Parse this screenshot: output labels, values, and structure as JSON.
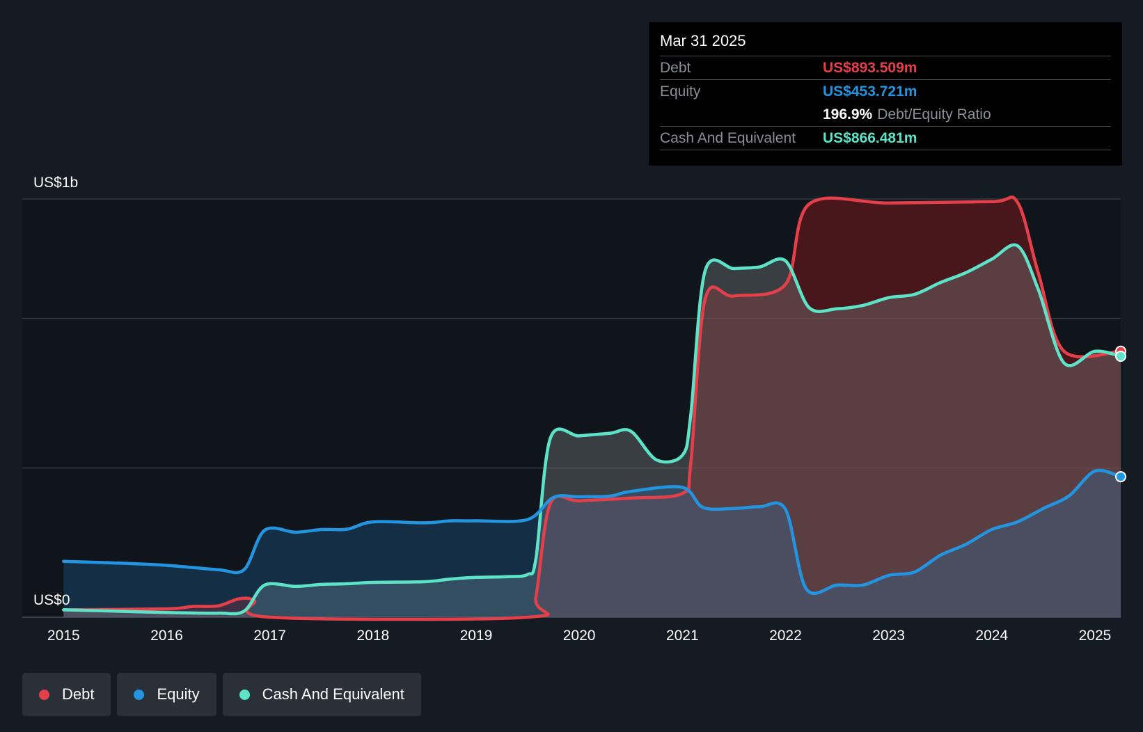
{
  "tooltip": {
    "date": "Mar 31 2025",
    "debt_label": "Debt",
    "debt_value": "US$893.509m",
    "equity_label": "Equity",
    "equity_value": "US$453.721m",
    "ratio_value": "196.9%",
    "ratio_label": "Debt/Equity Ratio",
    "cash_label": "Cash And Equivalent",
    "cash_value": "US$866.481m"
  },
  "legend": [
    {
      "label": "Debt",
      "color": "#e5404a"
    },
    {
      "label": "Equity",
      "color": "#2394df"
    },
    {
      "label": "Cash And Equivalent",
      "color": "#5de4c8"
    }
  ],
  "chart_data": {
    "type": "area",
    "ylim": [
      0,
      1250
    ],
    "xlim": [
      2014.6,
      2025.25
    ],
    "y_tick_labels": [
      {
        "value": 1250,
        "label": "US$1b"
      },
      {
        "value": 0,
        "label": "US$0"
      }
    ],
    "gridlines": [
      0,
      446,
      893,
      1250
    ],
    "x_ticks": [
      2015,
      2016,
      2017,
      2018,
      2019,
      2020,
      2021,
      2022,
      2023,
      2024,
      2025
    ],
    "series": [
      {
        "name": "Debt",
        "color": "#e5404a",
        "points": [
          [
            2015,
            22
          ],
          [
            2016,
            25
          ],
          [
            2016.25,
            32
          ],
          [
            2016.5,
            34
          ],
          [
            2016.7,
            55
          ],
          [
            2016.85,
            50
          ],
          [
            2017,
            0
          ],
          [
            2019.5,
            0
          ],
          [
            2019.58,
            60
          ],
          [
            2019.72,
            340
          ],
          [
            2020,
            348
          ],
          [
            2020.5,
            356
          ],
          [
            2021,
            370
          ],
          [
            2021.08,
            455
          ],
          [
            2021.22,
            950
          ],
          [
            2021.5,
            960
          ],
          [
            2022,
            995
          ],
          [
            2022.23,
            1235
          ],
          [
            2023,
            1238
          ],
          [
            2024,
            1242
          ],
          [
            2024.25,
            1240
          ],
          [
            2024.45,
            1030
          ],
          [
            2024.7,
            795
          ],
          [
            2025.25,
            795
          ]
        ]
      },
      {
        "name": "Equity",
        "color": "#2394df",
        "points": [
          [
            2015,
            167
          ],
          [
            2015.5,
            162
          ],
          [
            2016,
            155
          ],
          [
            2016.5,
            142
          ],
          [
            2016.75,
            142
          ],
          [
            2016.95,
            260
          ],
          [
            2017.25,
            254
          ],
          [
            2017.5,
            262
          ],
          [
            2017.75,
            263
          ],
          [
            2018,
            285
          ],
          [
            2018.5,
            282
          ],
          [
            2018.75,
            288
          ],
          [
            2019,
            288
          ],
          [
            2019.5,
            292
          ],
          [
            2019.75,
            358
          ],
          [
            2020,
            360
          ],
          [
            2020.3,
            362
          ],
          [
            2020.5,
            376
          ],
          [
            2021,
            388
          ],
          [
            2021.2,
            328
          ],
          [
            2021.5,
            325
          ],
          [
            2021.75,
            330
          ],
          [
            2022,
            322
          ],
          [
            2022.2,
            85
          ],
          [
            2022.5,
            96
          ],
          [
            2022.75,
            96
          ],
          [
            2023,
            125
          ],
          [
            2023.25,
            135
          ],
          [
            2023.5,
            185
          ],
          [
            2023.75,
            218
          ],
          [
            2024,
            262
          ],
          [
            2024.25,
            285
          ],
          [
            2024.5,
            325
          ],
          [
            2024.75,
            363
          ],
          [
            2025,
            437
          ],
          [
            2025.25,
            420
          ]
        ]
      },
      {
        "name": "Cash And Equivalent",
        "color": "#5de4c8",
        "points": [
          [
            2015,
            22
          ],
          [
            2015.5,
            18
          ],
          [
            2016,
            14
          ],
          [
            2016.5,
            12
          ],
          [
            2016.75,
            18
          ],
          [
            2016.95,
            96
          ],
          [
            2017.25,
            92
          ],
          [
            2017.5,
            98
          ],
          [
            2017.75,
            100
          ],
          [
            2018,
            104
          ],
          [
            2018.5,
            106
          ],
          [
            2018.75,
            114
          ],
          [
            2019,
            119
          ],
          [
            2019.3,
            121
          ],
          [
            2019.5,
            128
          ],
          [
            2019.58,
            175
          ],
          [
            2019.72,
            535
          ],
          [
            2020,
            542
          ],
          [
            2020.3,
            550
          ],
          [
            2020.5,
            556
          ],
          [
            2020.75,
            470
          ],
          [
            2021,
            484
          ],
          [
            2021.08,
            600
          ],
          [
            2021.22,
            1035
          ],
          [
            2021.5,
            1042
          ],
          [
            2021.75,
            1047
          ],
          [
            2022,
            1065
          ],
          [
            2022.23,
            925
          ],
          [
            2022.5,
            922
          ],
          [
            2022.75,
            932
          ],
          [
            2023,
            955
          ],
          [
            2023.25,
            965
          ],
          [
            2023.5,
            1000
          ],
          [
            2023.75,
            1030
          ],
          [
            2024,
            1070
          ],
          [
            2024.25,
            1110
          ],
          [
            2024.45,
            980
          ],
          [
            2024.7,
            760
          ],
          [
            2025,
            795
          ],
          [
            2025.25,
            780
          ]
        ]
      }
    ]
  }
}
